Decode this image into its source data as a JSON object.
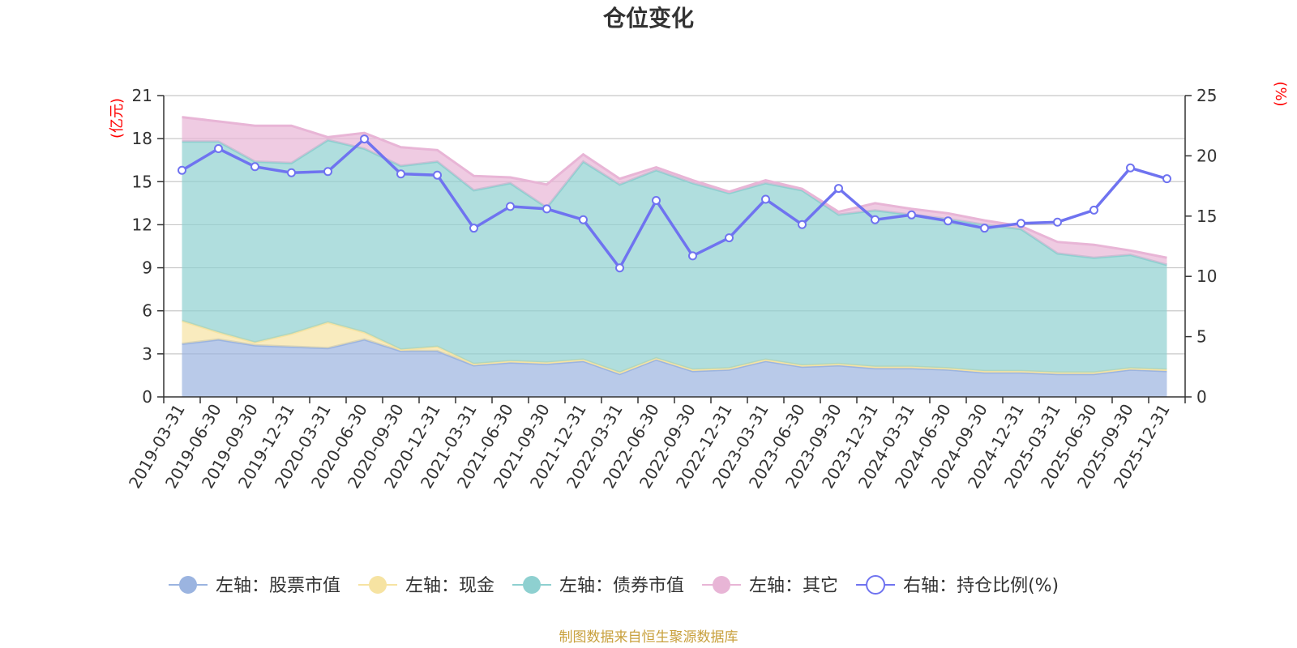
{
  "chart_data": {
    "type": "area",
    "title": "仓位变化",
    "left_unit": "(亿元)",
    "right_unit": "(%)",
    "left_ylim": [
      0,
      21
    ],
    "left_ticks": [
      0,
      3,
      6,
      9,
      12,
      15,
      18,
      21
    ],
    "right_ylim": [
      0,
      25
    ],
    "right_ticks": [
      0,
      5,
      10,
      15,
      20,
      25
    ],
    "grid": true,
    "legend_position": "bottom",
    "categories": [
      "2019-03-31",
      "2019-06-30",
      "2019-09-30",
      "2019-12-31",
      "2020-03-31",
      "2020-06-30",
      "2020-09-30",
      "2020-12-31",
      "2021-03-31",
      "2021-06-30",
      "2021-09-30",
      "2021-12-31",
      "2022-03-31",
      "2022-06-30",
      "2022-09-30",
      "2022-12-31",
      "2023-03-31",
      "2023-06-30",
      "2023-09-30",
      "2023-12-31",
      "2024-03-31",
      "2024-06-30",
      "2024-09-30",
      "2024-12-31",
      "2025-03-31",
      "2025-06-30",
      "2025-09-30",
      "2025-12-31"
    ],
    "stacked_series": [
      {
        "name": "左轴：股票市值",
        "color": "#9bb4e0",
        "values": [
          3.7,
          4.0,
          3.6,
          3.5,
          3.4,
          4.0,
          3.2,
          3.2,
          2.2,
          2.4,
          2.3,
          2.5,
          1.6,
          2.6,
          1.8,
          1.9,
          2.5,
          2.1,
          2.2,
          2.0,
          2.0,
          1.9,
          1.7,
          1.7,
          1.6,
          1.6,
          1.9,
          1.8
        ]
      },
      {
        "name": "左轴：现金",
        "color": "#f6e3a2",
        "values": [
          1.6,
          0.5,
          0.2,
          0.9,
          1.8,
          0.5,
          0.1,
          0.3,
          0.1,
          0.1,
          0.1,
          0.1,
          0.1,
          0.1,
          0.1,
          0.1,
          0.1,
          0.1,
          0.1,
          0.1,
          0.1,
          0.1,
          0.1,
          0.1,
          0.1,
          0.1,
          0.1,
          0.1
        ]
      },
      {
        "name": "左轴：债券市值",
        "color": "#8ed0d0",
        "values": [
          12.5,
          13.3,
          12.6,
          11.9,
          12.7,
          12.8,
          12.8,
          12.9,
          12.1,
          12.4,
          10.8,
          13.8,
          13.1,
          13.1,
          13.0,
          12.2,
          12.3,
          12.2,
          10.4,
          10.9,
          10.6,
          10.4,
          10.2,
          9.9,
          8.3,
          8.0,
          7.9,
          7.3
        ]
      },
      {
        "name": "左轴：其它",
        "color": "#e8b5d6",
        "values": [
          1.7,
          1.4,
          2.5,
          2.6,
          0.2,
          1.1,
          1.3,
          0.8,
          1.0,
          0.4,
          1.6,
          0.5,
          0.4,
          0.2,
          0.2,
          0.1,
          0.2,
          0.1,
          0.2,
          0.5,
          0.4,
          0.4,
          0.3,
          0.2,
          0.8,
          0.9,
          0.3,
          0.5
        ]
      }
    ],
    "line_series": {
      "name": "右轴：持仓比例(%)",
      "color": "#6f73f0",
      "values": [
        18.8,
        20.6,
        19.1,
        18.6,
        18.7,
        21.4,
        18.5,
        18.4,
        14.0,
        15.8,
        15.6,
        14.7,
        10.7,
        16.3,
        11.7,
        13.2,
        16.4,
        14.3,
        17.3,
        14.7,
        15.1,
        14.6,
        14.0,
        14.4,
        14.5,
        15.5,
        19.0,
        18.1
      ]
    }
  },
  "source_note": "制图数据来自恒生聚源数据库"
}
